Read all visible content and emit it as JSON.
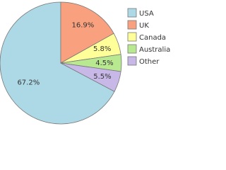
{
  "chart_data": {
    "type": "pie",
    "categories": [
      "USA",
      "UK",
      "Canada",
      "Australia",
      "Other"
    ],
    "values": [
      67.2,
      16.9,
      5.8,
      4.5,
      5.5
    ],
    "value_labels": [
      "67.2%",
      "16.9%",
      "5.8%",
      "4.5%",
      "5.5%"
    ],
    "colors": [
      "#add8e6",
      "#f9a17f",
      "#ffff99",
      "#b8e890",
      "#c8b8e8"
    ],
    "legend": "right"
  }
}
